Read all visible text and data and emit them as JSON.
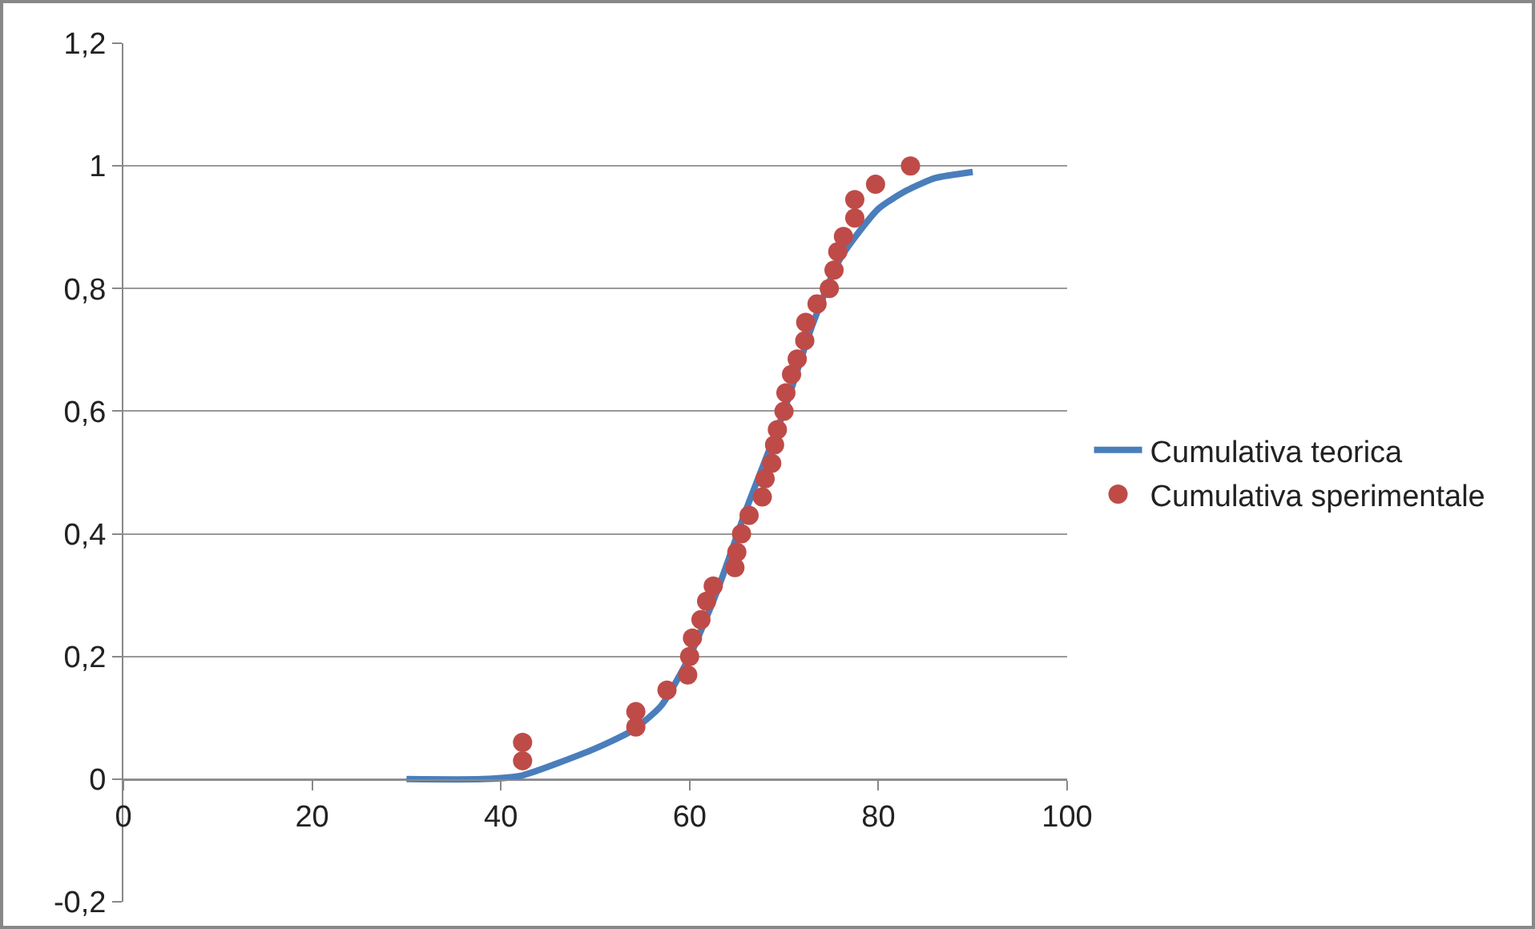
{
  "chart_data": {
    "type": "scatter",
    "xlim": [
      0,
      100
    ],
    "xticks": [
      0,
      20,
      40,
      60,
      80,
      100
    ],
    "ylim": [
      -0.2,
      1.2
    ],
    "yticks": [
      {
        "value": -0.2,
        "label": "-0,2"
      },
      {
        "value": 0,
        "label": "0"
      },
      {
        "value": 0.2,
        "label": "0,2"
      },
      {
        "value": 0.4,
        "label": "0,4"
      },
      {
        "value": 0.6,
        "label": "0,6"
      },
      {
        "value": 0.8,
        "label": "0,8"
      },
      {
        "value": 1,
        "label": "1"
      },
      {
        "value": 1.2,
        "label": "1,2"
      }
    ],
    "grid": "y",
    "legend": "right",
    "series": [
      {
        "name": "Cumulativa teorica",
        "type": "line",
        "color": "#4a7ebb",
        "marker": "none",
        "line_style": "solid",
        "x": [
          30,
          38,
          42,
          50,
          54,
          57,
          60,
          63,
          66,
          70,
          73,
          76,
          80,
          83,
          86,
          90
        ],
        "values": [
          0,
          0,
          0.005,
          0.05,
          0.08,
          0.12,
          0.2,
          0.31,
          0.44,
          0.6,
          0.74,
          0.85,
          0.93,
          0.96,
          0.98,
          0.99
        ]
      },
      {
        "name": "Cumulativa sperimentale",
        "color": "#be4b48",
        "marker": "circle",
        "x": [
          42.3,
          42.3,
          54.3,
          54.3,
          57.6,
          59.8,
          60,
          60.3,
          61.2,
          61.8,
          62.5,
          64.8,
          65,
          65.5,
          66.3,
          67.7,
          68,
          68.7,
          69,
          69.3,
          70,
          70.2,
          70.8,
          71.4,
          72.2,
          72.3,
          73.5,
          74.8,
          75.3,
          75.7,
          76.3,
          77.5,
          77.5,
          79.7,
          83.4
        ],
        "values": [
          0.03,
          0.06,
          0.085,
          0.11,
          0.145,
          0.17,
          0.2,
          0.23,
          0.26,
          0.29,
          0.315,
          0.345,
          0.37,
          0.4,
          0.43,
          0.46,
          0.49,
          0.515,
          0.545,
          0.57,
          0.6,
          0.63,
          0.66,
          0.685,
          0.715,
          0.745,
          0.775,
          0.8,
          0.83,
          0.86,
          0.885,
          0.915,
          0.945,
          0.97,
          1.0
        ]
      }
    ]
  }
}
